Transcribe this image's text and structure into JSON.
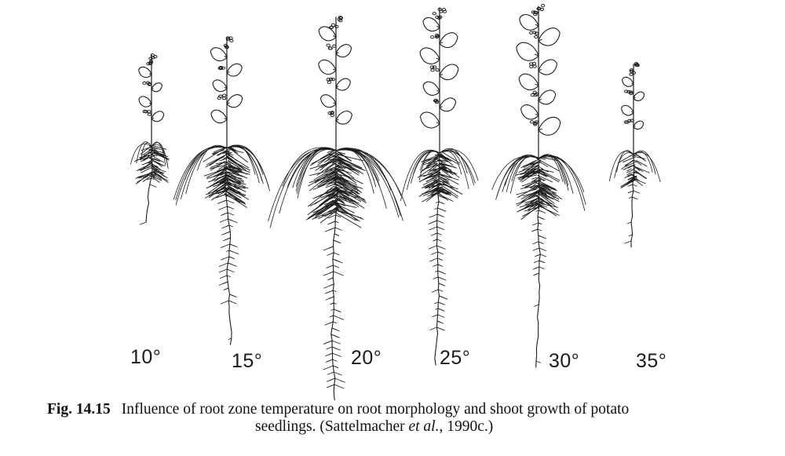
{
  "seedlings": [
    {
      "label": "10°"
    },
    {
      "label": "15°"
    },
    {
      "label": "20°"
    },
    {
      "label": "25°"
    },
    {
      "label": "30°"
    },
    {
      "label": "35°"
    }
  ],
  "caption": {
    "fig_no": "Fig. 14.15",
    "line1": "Influence of root zone temperature on root morphology and shoot growth of potato",
    "line2_pre": "seedlings. (Sattelmacher ",
    "line2_em": "et al.",
    "line2_post": ", 1990c.)"
  }
}
